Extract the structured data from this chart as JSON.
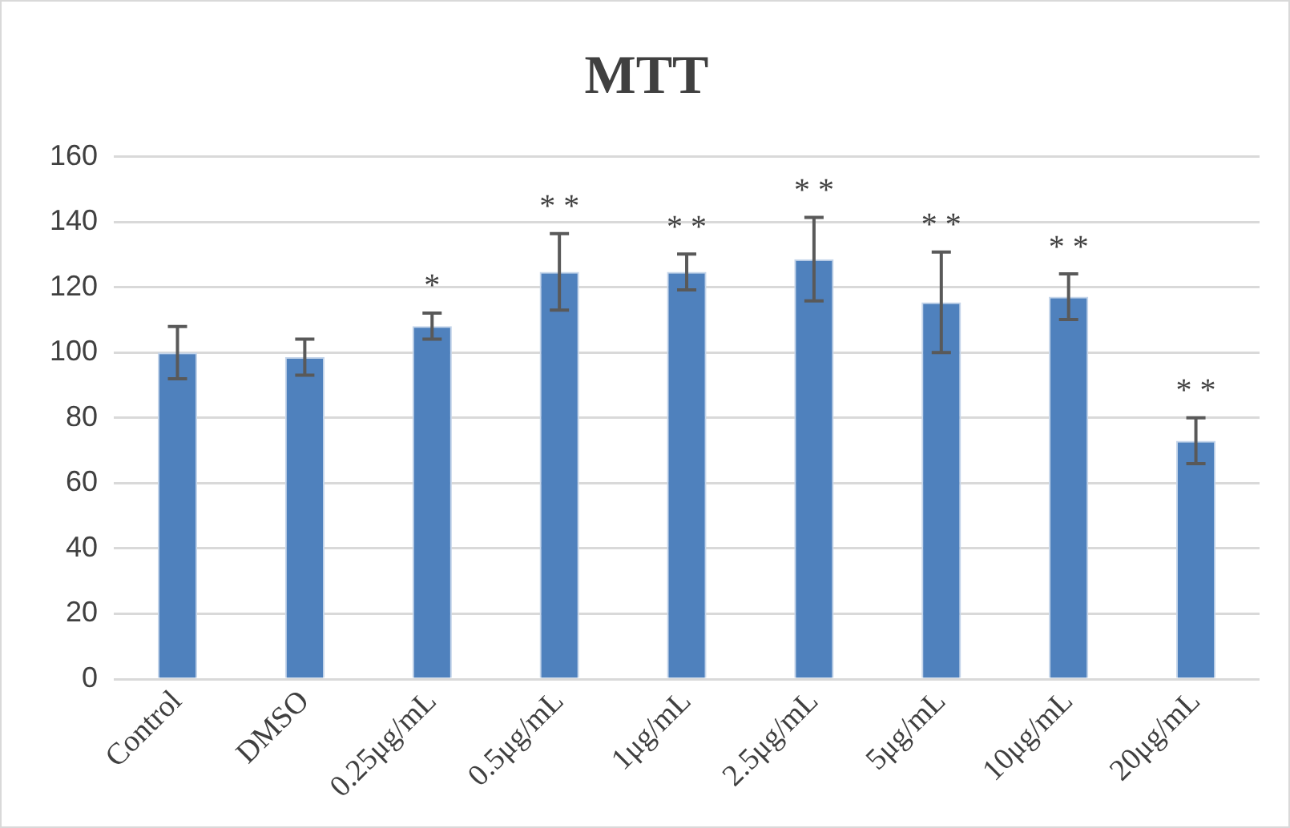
{
  "chart_data": {
    "type": "bar",
    "title": "MTT",
    "categories": [
      "Control",
      "DMSO",
      "0.25μg/mL",
      "0.5μg/mL",
      "1μg/mL",
      "2.5μg/mL",
      "5μg/mL",
      "10μg/mL",
      "20μg/mL"
    ],
    "values": [
      100,
      98.6,
      108.1,
      124.7,
      124.7,
      128.6,
      115.4,
      117.1,
      73
    ],
    "errors": [
      8,
      5.5,
      4,
      11.7,
      5.5,
      12.8,
      15.4,
      7,
      7
    ],
    "color": "#4f81bd",
    "value_labels": [
      null,
      null,
      "*",
      "* *",
      "* *",
      "* *",
      "* *",
      "* *",
      "* *"
    ],
    "ylim": [
      0,
      160
    ],
    "yticks": [
      0,
      20,
      40,
      60,
      80,
      100,
      120,
      140,
      160
    ],
    "grid": "y",
    "legend": false
  }
}
